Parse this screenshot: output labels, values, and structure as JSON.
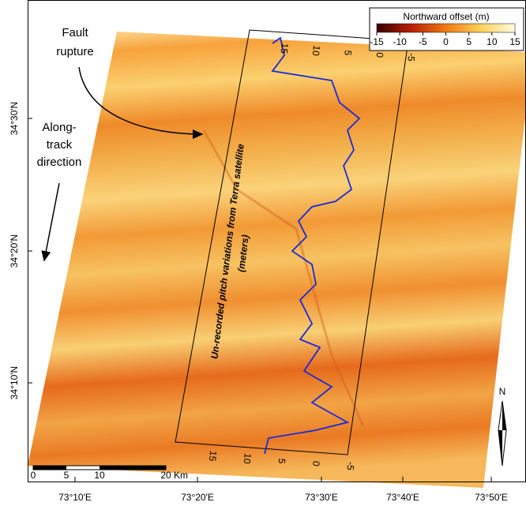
{
  "colorbar": {
    "title": "Northward offset (m)",
    "ticks": [
      -15,
      -10,
      -5,
      0,
      5,
      10,
      15
    ]
  },
  "annotations": {
    "fault_rupture": [
      "Fault",
      "rupture"
    ],
    "along_track": [
      "Along-",
      "track",
      "direction"
    ]
  },
  "profile": {
    "label": [
      "Un-recorded pitch variations from Terra satellite",
      "(meters)"
    ],
    "ticks_top": [
      15,
      10,
      5,
      0,
      -5
    ],
    "ticks_bottom": [
      15,
      10,
      5,
      0,
      -5
    ]
  },
  "lat_labels": [
    "34°30'N",
    "34°20'N",
    "34°10'N"
  ],
  "lon_labels": [
    "73°10'E",
    "73°20'E",
    "73°30'E",
    "73°40'E",
    "73°50'E"
  ],
  "scale_bar": {
    "ticks": [
      0,
      5,
      10,
      20
    ],
    "unit": "Km"
  },
  "north": "N"
}
